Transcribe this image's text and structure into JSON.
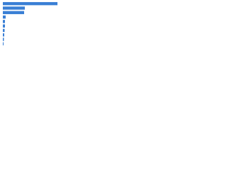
{
  "chart_data": {
    "type": "bar",
    "orientation": "horizontal",
    "categories": [
      null,
      null,
      null,
      null,
      null,
      null,
      null,
      null,
      null,
      null
    ],
    "values": [
      77,
      31,
      30,
      4,
      3,
      3,
      2.5,
      2,
      1.5,
      1
    ],
    "color": "#3a7fd5"
  }
}
